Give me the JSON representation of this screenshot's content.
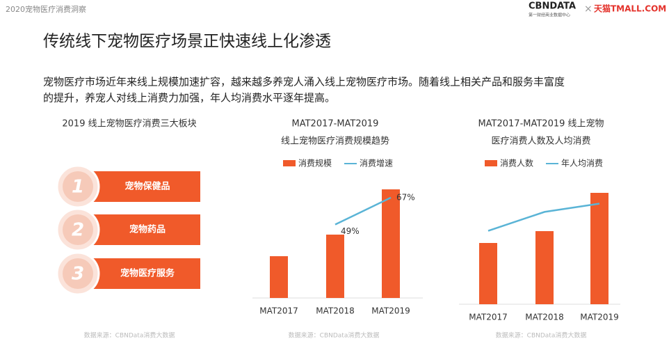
{
  "header": {
    "report": "2020宠物医疗消费洞察",
    "brand": "CBNDATA",
    "brand_sub": "第一财经商业数据中心",
    "partner": "天猫TMALL.COM"
  },
  "title": "传统线下宠物医疗场景正快速线上化渗透",
  "description": [
    "宠物医疗市场近年来线上规模加速扩容，越来越多养宠人涌入线上宠物医疗市场。随着线上相关产品和服务丰富度",
    "的提升，养宠人对线上消费力加强，年人均消费水平逐年提高。"
  ],
  "segments": {
    "title": "2019 线上宠物医疗消费三大板块",
    "items": [
      {
        "number": "1",
        "label": "宠物保健品"
      },
      {
        "number": "2",
        "label": "宠物药品"
      },
      {
        "number": "3",
        "label": "宠物医疗服务"
      }
    ]
  },
  "chart_data": [
    {
      "type": "bar_line",
      "title": "MAT2017-MAT2019",
      "subtitle": "线上宠物医疗消费规模趋势",
      "categories": [
        "MAT2017",
        "MAT2018",
        "MAT2019"
      ],
      "ylim": [
        0,
        170
      ],
      "y2lim": [
        0,
        79
      ],
      "series": [
        {
          "name": "消费规模",
          "type": "bar",
          "color": "#f05a2a",
          "values": [
            60,
            91,
            156
          ]
        },
        {
          "name": "消费增速",
          "type": "line",
          "axis": "y2",
          "color": "#5ab4d6",
          "values": [
            null,
            49,
            67
          ],
          "value_labels": [
            null,
            "49%",
            "67%"
          ]
        }
      ],
      "source": "数据来源：CBNData消费大数据"
    },
    {
      "type": "bar_line",
      "title": "MAT2017-MAT2019 线上宠物",
      "subtitle": "医疗消费人数及人均消费",
      "categories": [
        "MAT2017",
        "MAT2018",
        "MAT2019"
      ],
      "ylim": [
        0,
        170
      ],
      "y2lim": [
        0,
        100
      ],
      "series": [
        {
          "name": "消费人数",
          "type": "bar",
          "color": "#f05a2a",
          "values": [
            88,
            105,
            160
          ]
        },
        {
          "name": "年人均消费",
          "type": "line",
          "axis": "y2",
          "color": "#5ab4d6",
          "values": [
            62,
            78,
            85
          ]
        }
      ],
      "source": "数据来源：CBNData消费大数据"
    }
  ],
  "segments_source": "数据来源：CBNData消费大数据"
}
